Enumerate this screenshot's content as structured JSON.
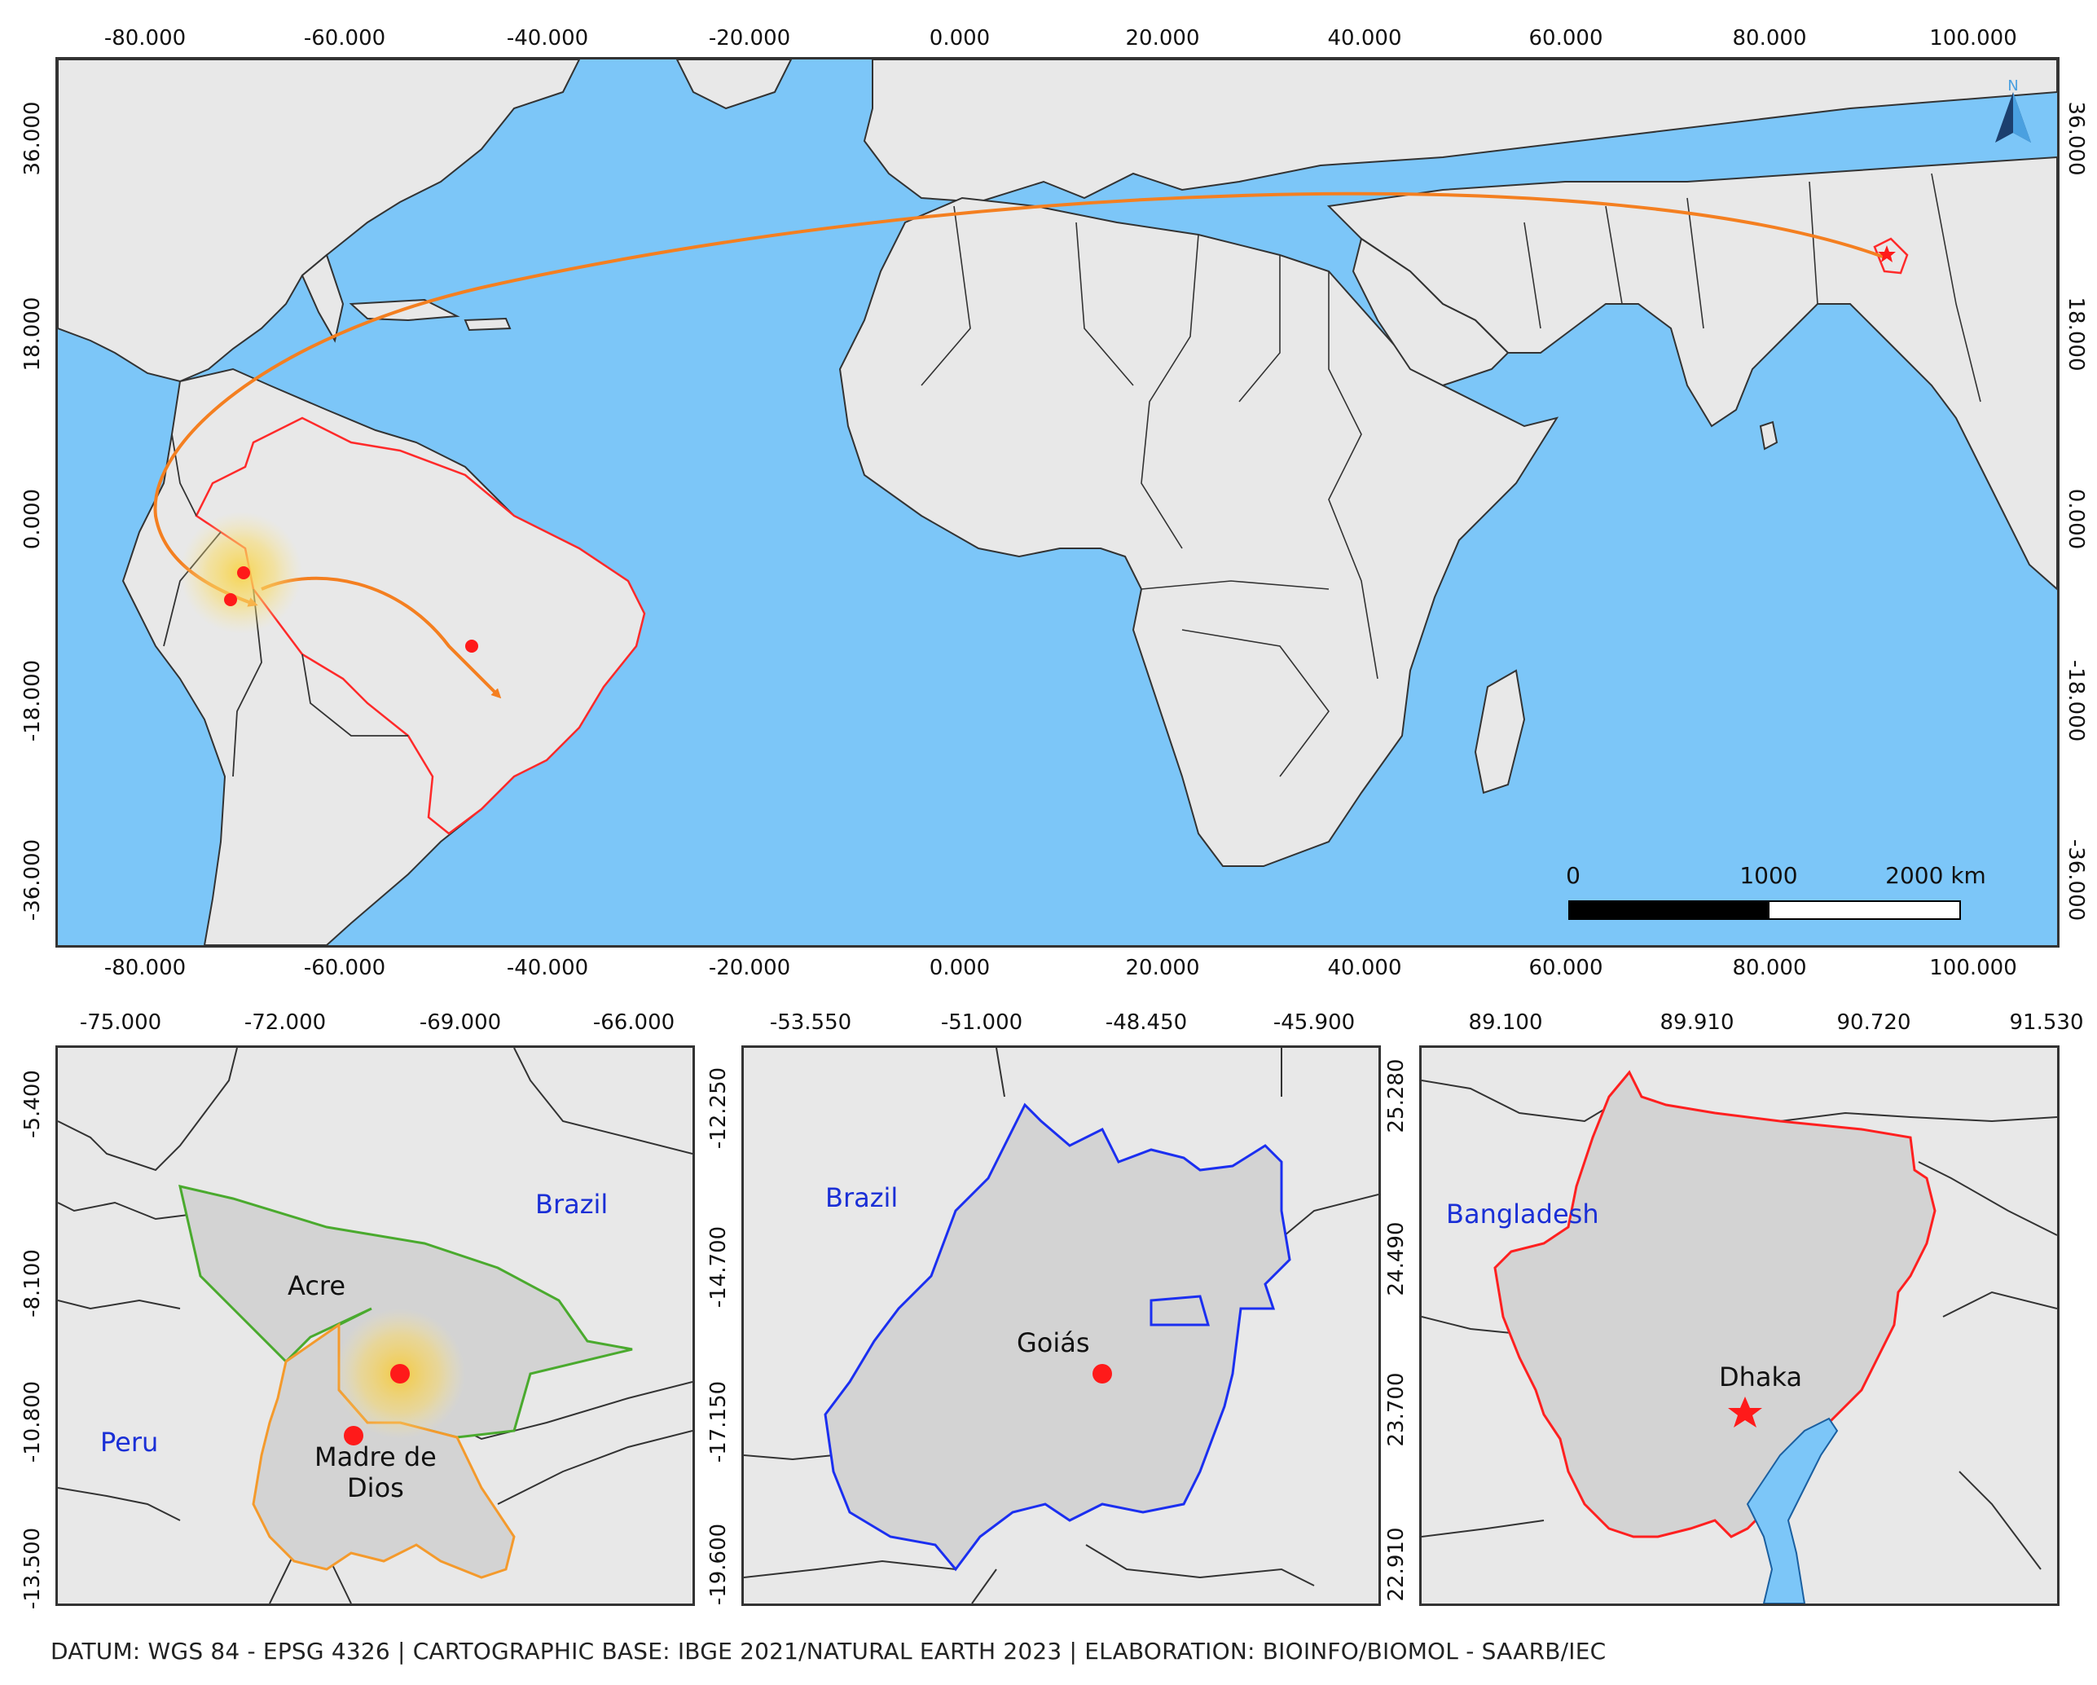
{
  "main_map": {
    "top_ticks": [
      "-80.000",
      "-60.000",
      "-40.000",
      "-20.000",
      "0.000",
      "20.000",
      "40.000",
      "60.000",
      "80.000",
      "100.000"
    ],
    "bottom_ticks": [
      "-80.000",
      "-60.000",
      "-40.000",
      "-20.000",
      "0.000",
      "20.000",
      "40.000",
      "60.000",
      "80.000",
      "100.000"
    ],
    "left_ticks": [
      "36.000",
      "18.000",
      "0.000",
      "-18.000",
      "-36.000"
    ],
    "right_ticks": [
      "36.000",
      "18.000",
      "0.000",
      "-18.000",
      "-36.000"
    ],
    "north_arrow": {
      "label": "N",
      "icon": "north-arrow-icon",
      "color": "#1c3f6e"
    },
    "scale_bar": {
      "labels": [
        "0",
        "1000",
        "2000 km"
      ]
    },
    "colors": {
      "ocean": "#7cc6f8",
      "land": "#e8e8e8",
      "route": "#f47f20",
      "highlight_border": "#ff2a2a",
      "point": "#ff1a1a"
    }
  },
  "inset_acre": {
    "top_ticks": [
      "-75.000",
      "-72.000",
      "-69.000",
      "-66.000"
    ],
    "left_ticks": [
      "-5.400",
      "-8.100",
      "-10.800",
      "-13.500"
    ],
    "labels": {
      "acre": "Acre",
      "madre": "Madre de\nDios",
      "brazil": "Brazil",
      "peru": "Peru"
    },
    "colors": {
      "acre_border": "#4aaa2e",
      "madre_border": "#f49a2c",
      "country_label": "#1a2fd6"
    }
  },
  "inset_goias": {
    "top_ticks": [
      "-53.550",
      "-51.000",
      "-48.450",
      "-45.900"
    ],
    "left_ticks": [
      "-12.250",
      "-14.700",
      "-17.150",
      "-19.600"
    ],
    "labels": {
      "goias": "Goiás",
      "brazil": "Brazil"
    },
    "colors": {
      "goias_border": "#1b2ff0"
    }
  },
  "inset_dhaka": {
    "top_ticks": [
      "89.100",
      "89.910",
      "90.720",
      "91.530"
    ],
    "left_ticks": [
      "25.280",
      "24.490",
      "23.700",
      "22.910"
    ],
    "labels": {
      "dhaka": "Dhaka",
      "bangladesh": "Bangladesh"
    },
    "colors": {
      "division_border": "#ff2020",
      "water": "#7cc6f8"
    }
  },
  "footer": "DATUM: WGS 84 - EPSG 4326 | CARTOGRAPHIC BASE: IBGE 2021/NATURAL EARTH 2023 | ELABORATION: BIOINFO/BIOMOL - SAARB/IEC"
}
